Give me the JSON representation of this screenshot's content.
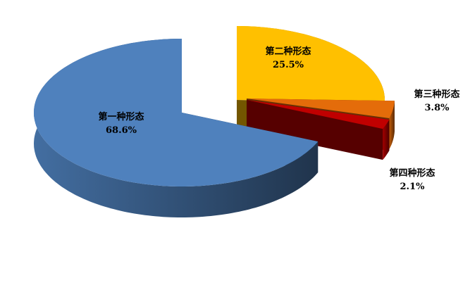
{
  "chart_data": {
    "type": "pie",
    "style": "3d-exploded",
    "categories": [
      "第一种形态",
      "第二种形态",
      "第三种形态",
      "第四种形态"
    ],
    "values": [
      68.6,
      25.5,
      3.8,
      2.1
    ],
    "value_labels": [
      "68.6%",
      "25.5%",
      "3.8%",
      "2.1%"
    ],
    "colors": [
      "#4f81bd",
      "#ffc000",
      "#e46c0a",
      "#c00000"
    ],
    "legend": "none"
  }
}
